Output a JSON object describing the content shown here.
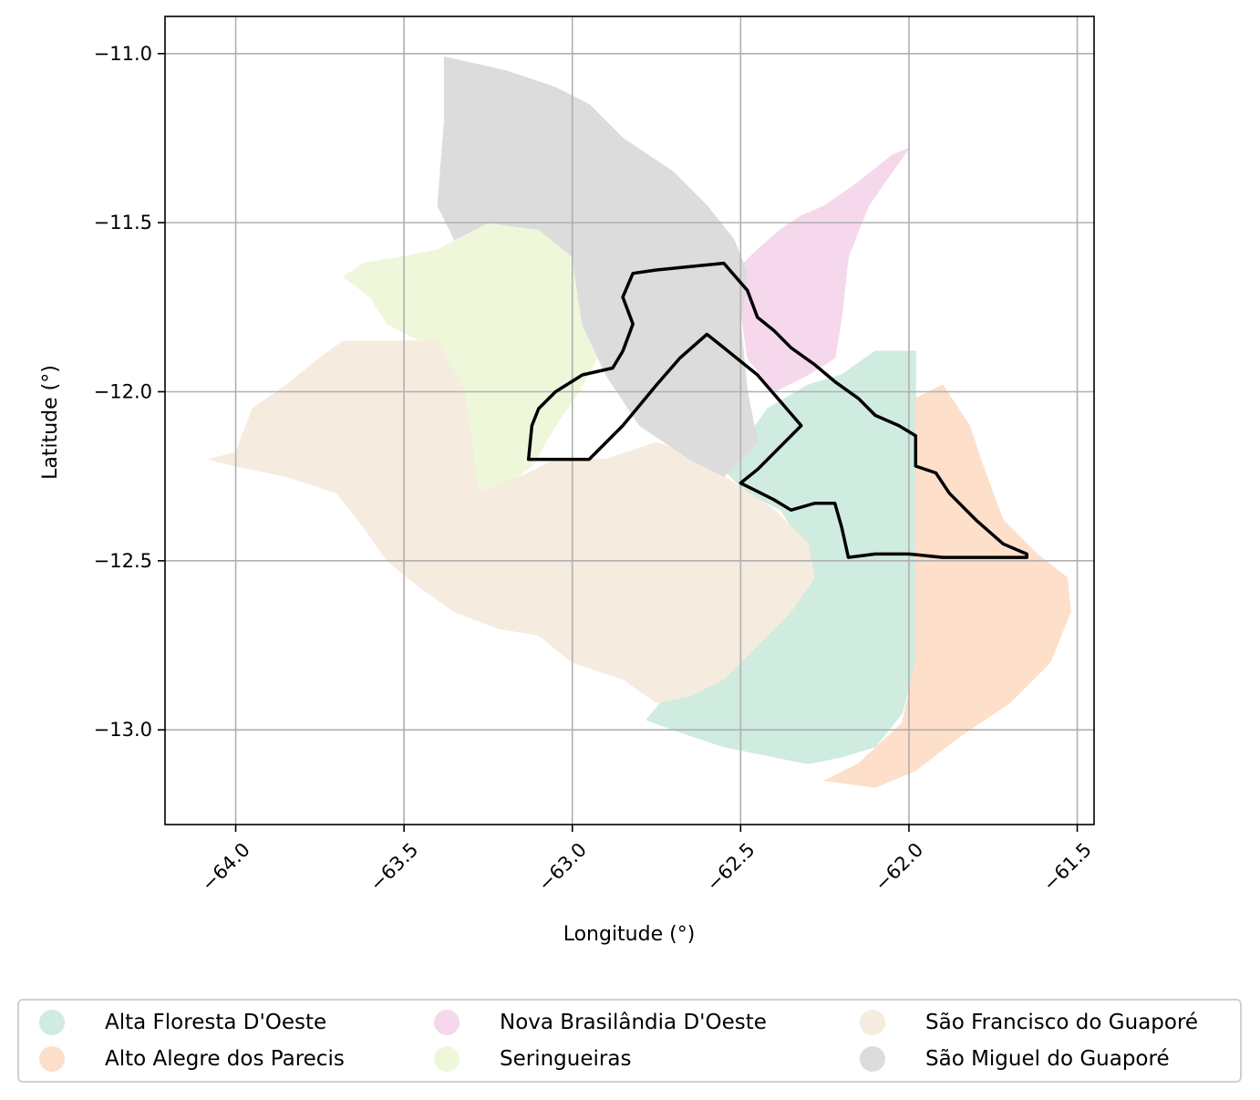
{
  "map": {
    "xlabel": "Longitude (°)",
    "ylabel": "Latitude (°)",
    "xlim": [
      -64.21,
      -61.45
    ],
    "ylim": [
      -13.28,
      -10.89
    ],
    "x_ticks": [
      -64.0,
      -63.5,
      -63.0,
      -62.5,
      -62.0,
      -61.5
    ],
    "y_ticks": [
      -11.0,
      -11.5,
      -12.0,
      -12.5,
      -13.0
    ],
    "x_tick_labels": [
      "−64.0",
      "−63.5",
      "−63.0",
      "−62.5",
      "−62.0",
      "−61.5"
    ],
    "y_tick_labels": [
      "−11.0",
      "−11.5",
      "−12.0",
      "−12.5",
      "−13.0"
    ],
    "grid": true,
    "legend_position": "bottom, outside plot, 3 columns"
  },
  "regions": [
    {
      "name": "Alta Floresta D'Oeste",
      "color": "#d0ebdf",
      "coords": [
        [
          -62.55,
          -12.23
        ],
        [
          -62.42,
          -12.05
        ],
        [
          -62.3,
          -11.98
        ],
        [
          -62.2,
          -11.95
        ],
        [
          -62.1,
          -11.88
        ],
        [
          -61.98,
          -11.88
        ],
        [
          -61.98,
          -12.2
        ],
        [
          -61.98,
          -12.5
        ],
        [
          -61.98,
          -12.8
        ],
        [
          -62.02,
          -12.95
        ],
        [
          -62.1,
          -13.05
        ],
        [
          -62.2,
          -13.08
        ],
        [
          -62.3,
          -13.1
        ],
        [
          -62.4,
          -13.08
        ],
        [
          -62.55,
          -13.05
        ],
        [
          -62.7,
          -13.0
        ],
        [
          -62.78,
          -12.97
        ],
        [
          -62.72,
          -12.9
        ],
        [
          -62.6,
          -12.85
        ],
        [
          -62.48,
          -12.7
        ],
        [
          -62.35,
          -12.6
        ],
        [
          -62.3,
          -12.48
        ],
        [
          -62.38,
          -12.35
        ],
        [
          -62.48,
          -12.3
        ],
        [
          -62.55,
          -12.23
        ]
      ]
    },
    {
      "name": "Alto Alegre dos Parecis",
      "color": "#fddfca",
      "coords": [
        [
          -61.98,
          -12.02
        ],
        [
          -61.9,
          -11.98
        ],
        [
          -61.82,
          -12.1
        ],
        [
          -61.78,
          -12.22
        ],
        [
          -61.72,
          -12.38
        ],
        [
          -61.62,
          -12.48
        ],
        [
          -61.53,
          -12.55
        ],
        [
          -61.52,
          -12.65
        ],
        [
          -61.58,
          -12.8
        ],
        [
          -61.7,
          -12.92
        ],
        [
          -61.85,
          -13.02
        ],
        [
          -61.98,
          -13.12
        ],
        [
          -62.1,
          -13.17
        ],
        [
          -62.25,
          -13.15
        ],
        [
          -62.15,
          -13.1
        ],
        [
          -62.02,
          -12.98
        ],
        [
          -61.98,
          -12.8
        ],
        [
          -61.98,
          -12.5
        ],
        [
          -61.98,
          -12.2
        ],
        [
          -61.98,
          -12.02
        ]
      ]
    },
    {
      "name": "Nova Brasilândia D'Oeste",
      "color": "#f5d8ec",
      "coords": [
        [
          -62.5,
          -11.63
        ],
        [
          -62.45,
          -11.58
        ],
        [
          -62.38,
          -11.52
        ],
        [
          -62.32,
          -11.48
        ],
        [
          -62.25,
          -11.45
        ],
        [
          -62.15,
          -11.38
        ],
        [
          -62.05,
          -11.3
        ],
        [
          -62.0,
          -11.28
        ],
        [
          -62.05,
          -11.35
        ],
        [
          -62.12,
          -11.45
        ],
        [
          -62.18,
          -11.6
        ],
        [
          -62.2,
          -11.78
        ],
        [
          -62.22,
          -11.9
        ],
        [
          -62.3,
          -11.95
        ],
        [
          -62.4,
          -12.0
        ],
        [
          -62.48,
          -11.9
        ],
        [
          -62.5,
          -11.75
        ],
        [
          -62.5,
          -11.63
        ]
      ]
    },
    {
      "name": "Seringueiras",
      "color": "#eef7da",
      "coords": [
        [
          -63.4,
          -11.58
        ],
        [
          -63.25,
          -11.5
        ],
        [
          -63.1,
          -11.5
        ],
        [
          -63.0,
          -11.55
        ],
        [
          -62.97,
          -11.7
        ],
        [
          -62.9,
          -11.85
        ],
        [
          -62.98,
          -12.0
        ],
        [
          -63.05,
          -12.1
        ],
        [
          -63.12,
          -12.22
        ],
        [
          -63.2,
          -12.28
        ],
        [
          -63.3,
          -12.3
        ],
        [
          -63.32,
          -12.1
        ],
        [
          -63.38,
          -11.92
        ],
        [
          -63.45,
          -11.85
        ],
        [
          -63.55,
          -11.8
        ],
        [
          -63.6,
          -11.72
        ],
        [
          -63.68,
          -11.66
        ],
        [
          -63.62,
          -11.62
        ],
        [
          -63.5,
          -11.6
        ],
        [
          -63.4,
          -11.58
        ]
      ]
    },
    {
      "name": "São Francisco do Guaporé",
      "color": "#f5ebdf",
      "coords": [
        [
          -64.08,
          -12.2
        ],
        [
          -64.0,
          -12.18
        ],
        [
          -63.95,
          -12.05
        ],
        [
          -63.85,
          -11.98
        ],
        [
          -63.75,
          -11.9
        ],
        [
          -63.68,
          -11.85
        ],
        [
          -63.4,
          -11.85
        ],
        [
          -63.32,
          -12.0
        ],
        [
          -63.3,
          -12.15
        ],
        [
          -63.28,
          -12.3
        ],
        [
          -63.15,
          -12.25
        ],
        [
          -63.05,
          -12.2
        ],
        [
          -62.9,
          -12.2
        ],
        [
          -62.75,
          -12.15
        ],
        [
          -62.6,
          -12.2
        ],
        [
          -62.55,
          -12.25
        ],
        [
          -62.4,
          -12.35
        ],
        [
          -62.3,
          -12.45
        ],
        [
          -62.28,
          -12.55
        ],
        [
          -62.35,
          -12.65
        ],
        [
          -62.45,
          -12.75
        ],
        [
          -62.55,
          -12.85
        ],
        [
          -62.65,
          -12.9
        ],
        [
          -62.75,
          -12.92
        ],
        [
          -62.85,
          -12.85
        ],
        [
          -63.0,
          -12.8
        ],
        [
          -63.1,
          -12.72
        ],
        [
          -63.22,
          -12.7
        ],
        [
          -63.35,
          -12.65
        ],
        [
          -63.45,
          -12.58
        ],
        [
          -63.55,
          -12.5
        ],
        [
          -63.62,
          -12.4
        ],
        [
          -63.7,
          -12.3
        ],
        [
          -63.85,
          -12.25
        ],
        [
          -64.0,
          -12.22
        ],
        [
          -64.08,
          -12.2
        ]
      ]
    },
    {
      "name": "São Miguel do Guaporé",
      "color": "#dcdcdc",
      "coords": [
        [
          -63.38,
          -11.01
        ],
        [
          -63.2,
          -11.05
        ],
        [
          -63.05,
          -11.1
        ],
        [
          -62.95,
          -11.15
        ],
        [
          -62.85,
          -11.25
        ],
        [
          -62.7,
          -11.35
        ],
        [
          -62.6,
          -11.45
        ],
        [
          -62.52,
          -11.55
        ],
        [
          -62.48,
          -11.65
        ],
        [
          -62.5,
          -11.8
        ],
        [
          -62.48,
          -12.0
        ],
        [
          -62.45,
          -12.15
        ],
        [
          -62.55,
          -12.25
        ],
        [
          -62.65,
          -12.2
        ],
        [
          -62.8,
          -12.1
        ],
        [
          -62.9,
          -11.95
        ],
        [
          -62.97,
          -11.8
        ],
        [
          -63.0,
          -11.6
        ],
        [
          -63.1,
          -11.52
        ],
        [
          -63.25,
          -11.5
        ],
        [
          -63.35,
          -11.55
        ],
        [
          -63.4,
          -11.45
        ],
        [
          -63.38,
          -11.2
        ],
        [
          -63.38,
          -11.01
        ]
      ]
    }
  ],
  "outline": {
    "color": "#000000",
    "coords": [
      [
        -62.55,
        -11.62
      ],
      [
        -62.48,
        -11.7
      ],
      [
        -62.45,
        -11.78
      ],
      [
        -62.4,
        -11.82
      ],
      [
        -62.35,
        -11.87
      ],
      [
        -62.28,
        -11.92
      ],
      [
        -62.22,
        -11.97
      ],
      [
        -62.15,
        -12.02
      ],
      [
        -62.1,
        -12.07
      ],
      [
        -62.03,
        -12.1
      ],
      [
        -61.98,
        -12.13
      ],
      [
        -61.98,
        -12.22
      ],
      [
        -61.92,
        -12.24
      ],
      [
        -61.88,
        -12.3
      ],
      [
        -61.8,
        -12.38
      ],
      [
        -61.72,
        -12.45
      ],
      [
        -61.65,
        -12.48
      ],
      [
        -61.65,
        -12.49
      ],
      [
        -61.9,
        -12.49
      ],
      [
        -62.0,
        -12.48
      ],
      [
        -62.1,
        -12.48
      ],
      [
        -62.18,
        -12.49
      ],
      [
        -62.2,
        -12.4
      ],
      [
        -62.22,
        -12.33
      ],
      [
        -62.28,
        -12.33
      ],
      [
        -62.35,
        -12.35
      ],
      [
        -62.4,
        -12.32
      ],
      [
        -62.5,
        -12.27
      ],
      [
        -62.45,
        -12.23
      ],
      [
        -62.32,
        -12.1
      ],
      [
        -62.45,
        -11.95
      ],
      [
        -62.55,
        -11.87
      ],
      [
        -62.6,
        -11.83
      ],
      [
        -62.68,
        -11.9
      ],
      [
        -62.75,
        -11.98
      ],
      [
        -62.85,
        -12.1
      ],
      [
        -62.95,
        -12.2
      ],
      [
        -63.05,
        -12.2
      ],
      [
        -63.13,
        -12.2
      ],
      [
        -63.12,
        -12.1
      ],
      [
        -63.1,
        -12.05
      ],
      [
        -63.05,
        -12.0
      ],
      [
        -62.97,
        -11.95
      ],
      [
        -62.88,
        -11.93
      ],
      [
        -62.85,
        -11.88
      ],
      [
        -62.82,
        -11.8
      ],
      [
        -62.85,
        -11.72
      ],
      [
        -62.82,
        -11.65
      ],
      [
        -62.75,
        -11.64
      ],
      [
        -62.65,
        -11.63
      ],
      [
        -62.55,
        -11.62
      ]
    ]
  },
  "legend": {
    "items": [
      {
        "label": "Alta Floresta D'Oeste",
        "color": "#d0ebdf"
      },
      {
        "label": "Alto Alegre dos Parecis",
        "color": "#fddfca"
      },
      {
        "label": "Nova Brasilândia D'Oeste",
        "color": "#f5d8ec"
      },
      {
        "label": "Seringueiras",
        "color": "#eef7da"
      },
      {
        "label": "São Francisco do Guaporé",
        "color": "#f5ebdf"
      },
      {
        "label": "São Miguel do Guaporé",
        "color": "#dcdcdc"
      }
    ]
  }
}
